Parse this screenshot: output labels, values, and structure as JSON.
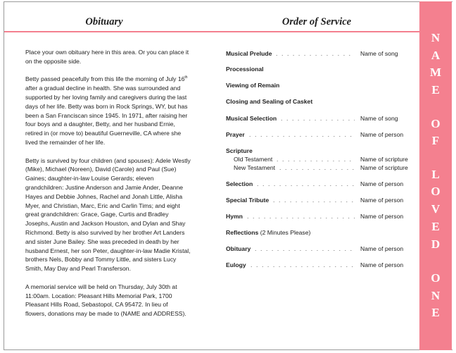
{
  "obituary": {
    "title": "Obituary",
    "paragraphs": [
      [
        "Place your own obituary here in this area. Or you can place it",
        "on the opposite side."
      ],
      [
        "Betty passed peacefully from this life the morning of July 16",
        "after a gradual decline in health.  She was surrounded and",
        "supported by her loving family and caregivers during the last",
        "days of her life.  Betty was born in Rock Springs, WY, but has",
        "been a San Franciscan since 1945.  In 1971, after raising her",
        "four boys and a daughter, Betty, and her husband Ernie,",
        "retired in (or move to) beautiful Guerneville, CA where she",
        "lived the remainder of her life."
      ],
      [
        "Betty is survived by four children (and spouses): Adele Westly",
        "(Mike), Michael (Noreen), David (Carole) and Paul (Sue)",
        "Gaines;  daughter-in-law Louise Gerards;  eleven",
        "grandchildren: Justine Anderson and Jamie Ander, Deanne",
        "Hayes and Debbie Johnes, Rachel and Jonah Little, Alisha",
        "Myer, and Christian, Marc, Eric and Carlin Tims;  and eight",
        "great grandchildren: Grace, Gage, Curtis and Bradley",
        "Josephs, Austin and Jackson Houston, and Dylan and Shay",
        "Richmond.  Betty is also survived by her brother Art Landers",
        "and sister June Bailey.  She was preceded in death by her",
        "husband Ernest, her son Peter, daughter-in-law Madie Kristal,",
        "brothers Nels, Bobby and Tommy Little, and sisters Lucy",
        "Smith, May Day and Pearl Transferson."
      ],
      [
        "A memorial service will be held on Thursday, July 30th at",
        "11:00am.  Location:  Pleasant Hills Memorial Park, 1700",
        "Pleasant Hills Road, Sebastopol, CA 95472.  In lieu of",
        "flowers, donations may be made to (NAME and ADDRESS)."
      ]
    ],
    "superscript": "th"
  },
  "order_of_service": {
    "title": "Order of Service",
    "items": [
      {
        "label": "Musical Prelude",
        "dots": ". . . . . . . . . . . . . . . . . . . . .",
        "value": "Name of song"
      },
      {
        "label": "Processional"
      },
      {
        "label": "Viewing of Remain"
      },
      {
        "label": "Closing and Sealing of Casket"
      },
      {
        "label": "Musical Selection",
        "dots": ". . . . . . . . . . . . . . . . . . .",
        "value": "Name of song"
      },
      {
        "label": "Prayer",
        "dots": ". . . . . . . . . . . . . . . . . . . . . . . . . . . . .",
        "value": "Name of person"
      },
      {
        "label": "Scripture"
      },
      {
        "sub": "Old Testament",
        "dots": ". . . . . . . . . . . . . . . . . . . . .",
        "value": "Name of scripture"
      },
      {
        "sub": "New Testament",
        "dots": ". . . . . . . . . . . . . . . . . . . . .",
        "value": "Name of scripture"
      },
      {
        "label": "Selection",
        "dots": ". . . . . . . . . . . . . . . . . . . . . . . . . . . .",
        "value": "Name of person"
      },
      {
        "label": "Special Tribute",
        "dots": ". . . . . . . . . . . . . . . . . . . . . .",
        "value": "Name of person"
      },
      {
        "label": "Hymn",
        "dots": ". . . . . . . . . . . . . . . . . . . . . . . . . . . . . .",
        "value": "Name of person"
      },
      {
        "label": "Reflections",
        "note": " (2 Minutes Please)"
      },
      {
        "label": "Obituary",
        "dots": ". . . . . . . . . . . . . . . . . . . . . . . . . . . . .",
        "value": "Name of person"
      },
      {
        "label": "Eulogy",
        "dots": ". . . . . . . . . . . . . . . . . . . . . . . . . . . . .",
        "value": "Name of person"
      }
    ]
  },
  "sidebar": {
    "letters": [
      "N",
      "A",
      "M",
      "E",
      "O",
      "F",
      "L",
      "O",
      "V",
      "E",
      "D",
      "O",
      "N",
      "E"
    ],
    "color": "#f4808f"
  }
}
